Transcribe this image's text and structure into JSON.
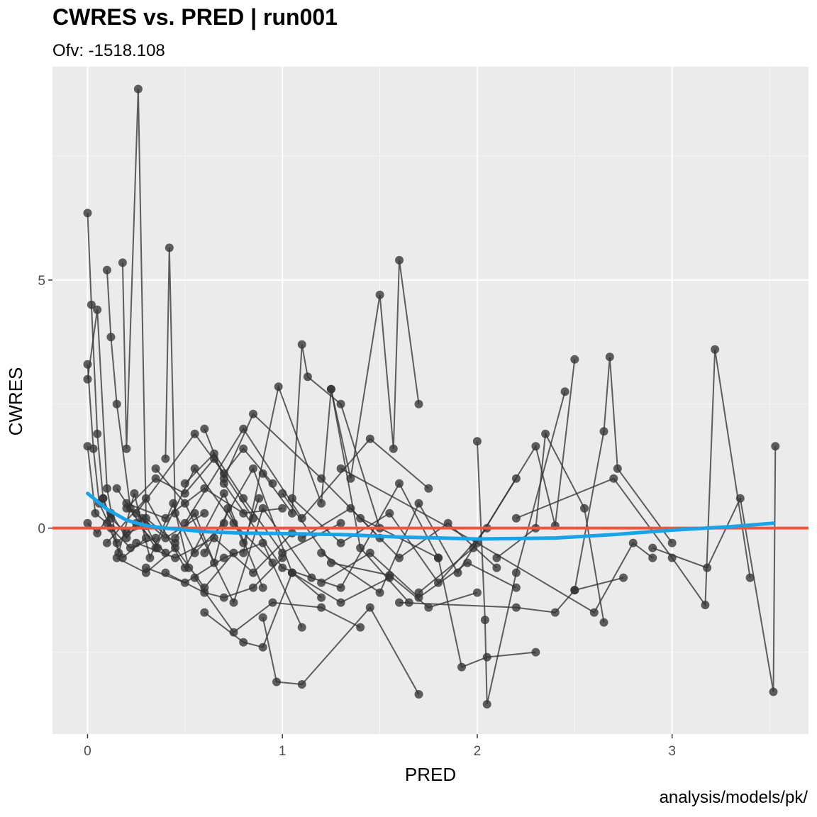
{
  "chart_data": {
    "type": "scatter",
    "title": "CWRES vs. PRED | run001",
    "subtitle": "Ofv: -1518.108",
    "caption": "analysis/models/pk/",
    "xlabel": "PRED",
    "ylabel": "CWRES",
    "xlim": [
      -0.18,
      3.7
    ],
    "ylim": [
      -4.15,
      9.3
    ],
    "x_ticks": [
      0,
      1,
      2,
      3
    ],
    "y_ticks": [
      0,
      5
    ],
    "grid": true,
    "reference_line": {
      "y": 0,
      "color": "#f8523d"
    },
    "smooth": {
      "color": "#1ba3e8",
      "x": [
        0.0,
        0.1,
        0.2,
        0.3,
        0.4,
        0.6,
        0.8,
        1.0,
        1.3,
        1.6,
        2.0,
        2.4,
        2.7,
        3.0,
        3.3,
        3.52
      ],
      "y": [
        0.7,
        0.38,
        0.16,
        0.05,
        0.0,
        -0.07,
        -0.1,
        -0.11,
        -0.13,
        -0.18,
        -0.22,
        -0.2,
        -0.13,
        -0.04,
        0.03,
        0.1
      ]
    },
    "points_color": "#333333",
    "series": [
      {
        "x": [
          0.0,
          0.02,
          0.05,
          0.08,
          0.12,
          0.2,
          0.3
        ],
        "y": [
          6.35,
          4.5,
          1.9,
          0.6,
          0.2,
          -0.1,
          0.05
        ]
      },
      {
        "x": [
          0.0,
          0.03,
          0.06,
          0.12,
          0.22,
          0.35
        ],
        "y": [
          3.3,
          1.6,
          0.5,
          0.0,
          -0.4,
          -0.2
        ]
      },
      {
        "x": [
          0.0,
          0.05,
          0.1,
          0.15,
          0.25,
          0.4
        ],
        "y": [
          3.0,
          4.4,
          0.8,
          -0.3,
          0.1,
          -0.5
        ]
      },
      {
        "x": [
          0.0,
          0.04,
          0.1,
          0.18,
          0.3
        ],
        "y": [
          1.65,
          0.3,
          0.1,
          -0.6,
          -0.2
        ]
      },
      {
        "x": [
          0.1,
          0.12,
          0.15,
          0.22,
          0.4,
          0.6
        ],
        "y": [
          5.2,
          3.85,
          2.5,
          0.4,
          -0.2,
          0.3
        ]
      },
      {
        "x": [
          0.18,
          0.2,
          0.26,
          0.3,
          0.45
        ],
        "y": [
          5.35,
          1.6,
          8.85,
          0.2,
          -0.3
        ]
      },
      {
        "x": [
          0.4,
          0.42,
          0.45,
          0.55,
          0.7
        ],
        "y": [
          1.4,
          5.65,
          0.3,
          -0.5,
          0.1
        ]
      },
      {
        "x": [
          1.25,
          1.35,
          1.5,
          1.57,
          1.6,
          1.7
        ],
        "y": [
          2.8,
          1.0,
          4.7,
          1.6,
          5.4,
          2.5
        ]
      },
      {
        "x": [
          0.9,
          1.05,
          1.1,
          1.13,
          1.3,
          1.5
        ],
        "y": [
          1.1,
          0.3,
          3.7,
          3.05,
          2.5,
          0.0
        ]
      },
      {
        "x": [
          0.8,
          0.98,
          1.2,
          1.25,
          1.4,
          1.65
        ],
        "y": [
          -0.5,
          2.85,
          0.5,
          2.8,
          -0.4,
          -1.5
        ]
      },
      {
        "x": [
          0.9,
          0.97,
          1.1,
          1.45,
          1.7
        ],
        "y": [
          -1.8,
          -3.1,
          -3.15,
          -1.6,
          -3.35
        ]
      },
      {
        "x": [
          1.4,
          1.8,
          1.92,
          2.05,
          2.3
        ],
        "y": [
          0.2,
          -0.6,
          -2.8,
          -2.6,
          -2.5
        ]
      },
      {
        "x": [
          2.0,
          2.04,
          2.05,
          2.2,
          2.45
        ],
        "y": [
          1.75,
          -1.85,
          -3.55,
          -0.9,
          2.75
        ]
      },
      {
        "x": [
          1.7,
          1.98,
          2.3,
          2.4,
          2.5
        ],
        "y": [
          -1.3,
          -0.4,
          1.65,
          0.05,
          3.4
        ]
      },
      {
        "x": [
          2.1,
          2.3,
          2.35,
          2.55,
          2.65
        ],
        "y": [
          -0.6,
          0.0,
          1.9,
          0.4,
          -1.9
        ]
      },
      {
        "x": [
          2.5,
          2.65,
          2.68,
          2.72,
          3.0
        ],
        "y": [
          -1.25,
          1.95,
          3.45,
          1.2,
          -0.3
        ]
      },
      {
        "x": [
          2.2,
          2.7,
          3.0,
          3.17,
          3.22,
          3.4
        ],
        "y": [
          0.2,
          1.0,
          -0.6,
          -1.55,
          3.6,
          -1.0
        ]
      },
      {
        "x": [
          2.9,
          3.18,
          3.35,
          3.52,
          3.53
        ],
        "y": [
          -0.4,
          -0.8,
          0.6,
          -3.3,
          1.65
        ]
      },
      {
        "x": [
          1.3,
          2.0,
          2.6,
          2.8,
          2.9
        ],
        "y": [
          1.2,
          -0.3,
          -1.7,
          -0.3,
          -0.6
        ]
      },
      {
        "x": [
          1.6,
          2.2,
          2.4,
          2.5,
          2.75
        ],
        "y": [
          -1.5,
          -1.6,
          -1.7,
          -1.25,
          -1.0
        ]
      },
      {
        "x": [
          1.2,
          1.5,
          1.7,
          1.9,
          2.2
        ],
        "y": [
          -0.5,
          -1.3,
          0.5,
          -0.9,
          1.0
        ]
      },
      {
        "x": [
          1.0,
          1.25,
          1.55,
          1.75,
          2.0
        ],
        "y": [
          0.7,
          -0.7,
          -0.95,
          -1.6,
          -1.3
        ]
      },
      {
        "x": [
          0.7,
          1.0,
          1.3,
          1.6,
          1.8
        ],
        "y": [
          0.9,
          -0.8,
          -1.2,
          0.9,
          -0.6
        ]
      },
      {
        "x": [
          0.6,
          0.85,
          1.05,
          1.3,
          1.55
        ],
        "y": [
          -0.5,
          1.2,
          -0.9,
          -1.5,
          -1.0
        ]
      },
      {
        "x": [
          0.5,
          0.8,
          1.1,
          1.45,
          1.75
        ],
        "y": [
          0.1,
          2.0,
          0.2,
          1.8,
          0.8
        ]
      },
      {
        "x": [
          0.55,
          0.75,
          0.95,
          1.2,
          1.4
        ],
        "y": [
          -1.0,
          -2.1,
          -1.5,
          -1.6,
          -2.0
        ]
      },
      {
        "x": [
          0.6,
          0.8,
          0.9,
          1.05,
          1.2
        ],
        "y": [
          -1.7,
          -2.3,
          -2.4,
          -0.9,
          -1.4
        ]
      },
      {
        "x": [
          0.3,
          0.5,
          0.7,
          0.9,
          1.1
        ],
        "y": [
          -0.8,
          -1.1,
          -0.6,
          -0.3,
          -2.0
        ]
      },
      {
        "x": [
          0.5,
          0.65,
          0.8,
          1.0,
          1.3
        ],
        "y": [
          0.9,
          1.5,
          0.6,
          -0.5,
          0.1
        ]
      },
      {
        "x": [
          0.6,
          0.7,
          0.85,
          1.2,
          1.5
        ],
        "y": [
          2.0,
          1.0,
          2.3,
          1.0,
          -0.2
        ]
      },
      {
        "x": [
          0.2,
          0.4,
          0.6,
          0.8,
          1.0
        ],
        "y": [
          0.5,
          0.2,
          0.8,
          0.3,
          0.4
        ]
      },
      {
        "x": [
          0.25,
          0.45,
          0.65,
          0.85,
          1.05
        ],
        "y": [
          -0.3,
          -0.6,
          -0.2,
          -0.9,
          -0.1
        ]
      },
      {
        "x": [
          0.15,
          0.35,
          0.55,
          0.75,
          0.95
        ],
        "y": [
          0.8,
          -0.4,
          1.2,
          0.1,
          -0.7
        ]
      },
      {
        "x": [
          0.35,
          0.5,
          0.75,
          0.9,
          1.15
        ],
        "y": [
          1.2,
          0.5,
          -1.5,
          0.4,
          -1.0
        ]
      },
      {
        "x": [
          0.1,
          0.3,
          0.5,
          0.7,
          0.9
        ],
        "y": [
          -0.3,
          0.6,
          -0.8,
          0.7,
          -1.2
        ]
      },
      {
        "x": [
          0.4,
          0.6,
          0.7,
          0.85,
          1.0
        ],
        "y": [
          -0.9,
          -1.3,
          -1.4,
          -1.2,
          -0.6
        ]
      },
      {
        "x": [
          0.25,
          0.55,
          0.7,
          0.8,
          0.95
        ],
        "y": [
          0.3,
          1.9,
          1.1,
          1.6,
          0.9
        ]
      },
      {
        "x": [
          0.15,
          0.3,
          0.45,
          0.6,
          0.75
        ],
        "y": [
          -0.6,
          -0.9,
          -0.4,
          -1.2,
          -0.5
        ]
      },
      {
        "x": [
          0.2,
          0.35,
          0.5,
          0.65,
          0.85
        ],
        "y": [
          0.4,
          1.0,
          0.7,
          1.4,
          0.2
        ]
      },
      {
        "x": [
          1.1,
          1.35,
          1.6,
          1.85,
          2.1
        ],
        "y": [
          -0.2,
          0.4,
          -0.6,
          0.1,
          -0.8
        ]
      },
      {
        "x": [
          1.05,
          1.3,
          1.55,
          1.8,
          2.05
        ],
        "y": [
          0.6,
          -0.3,
          0.3,
          -1.1,
          0.0
        ]
      },
      {
        "x": [
          1.2,
          1.45,
          1.7,
          1.95,
          2.2
        ],
        "y": [
          -1.1,
          -0.5,
          -1.4,
          -0.7,
          -1.2
        ]
      },
      {
        "x": [
          0.45,
          0.55,
          0.65,
          0.72,
          0.8,
          0.88
        ],
        "y": [
          -0.2,
          0.3,
          -0.7,
          0.4,
          -0.3,
          0.6
        ]
      },
      {
        "x": [
          0.0,
          0.05,
          0.12,
          0.2,
          0.28,
          0.36
        ],
        "y": [
          0.1,
          -0.1,
          0.3,
          -0.2,
          0.2,
          -0.4
        ]
      },
      {
        "x": [
          0.08,
          0.16,
          0.24,
          0.32,
          0.44,
          0.52
        ],
        "y": [
          0.6,
          -0.5,
          0.7,
          -0.6,
          0.5,
          -0.8
        ]
      }
    ]
  }
}
